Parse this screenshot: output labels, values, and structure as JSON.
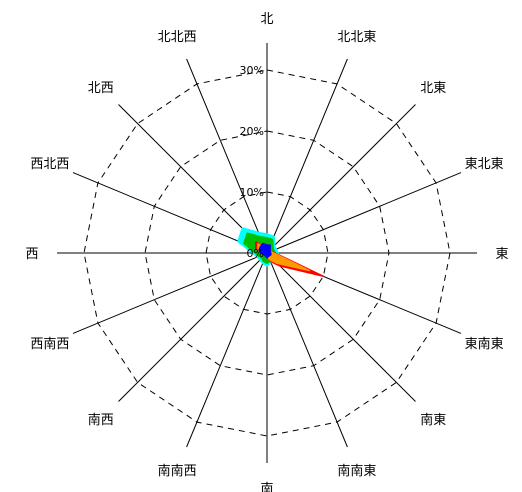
{
  "chart_data": {
    "type": "radar",
    "title": "",
    "directions": [
      "北",
      "北北東",
      "北東",
      "東北東",
      "東",
      "東南東",
      "南東",
      "南南東",
      "南",
      "南南西",
      "南西",
      "西南西",
      "西",
      "西北西",
      "北西",
      "北北西"
    ],
    "radial_ticks": [
      "0%",
      "10%",
      "20%",
      "30%"
    ],
    "rmax": 30,
    "series": [
      {
        "color": "#00ffff",
        "values": [
          3.0,
          2.8,
          1.6,
          1.5,
          1.7,
          1.8,
          1.6,
          1.6,
          2.0,
          1.7,
          1.5,
          1.6,
          2.2,
          5.0,
          5.6,
          3.5
        ]
      },
      {
        "color": "#00c000",
        "values": [
          2.5,
          2.4,
          1.4,
          1.2,
          1.4,
          1.5,
          1.3,
          1.4,
          1.7,
          1.5,
          1.2,
          1.4,
          1.9,
          4.1,
          4.6,
          2.9
        ]
      },
      {
        "color": "#ff0000",
        "values": [
          0.9,
          0.9,
          0.6,
          0.8,
          1.3,
          10.0,
          3.0,
          1.5,
          0.7,
          0.5,
          0.5,
          0.6,
          0.9,
          2.0,
          2.6,
          1.0
        ]
      },
      {
        "color": "#ff9900",
        "values": [
          0.8,
          0.8,
          0.5,
          0.7,
          1.1,
          7.5,
          2.4,
          1.2,
          0.6,
          0.4,
          0.4,
          0.5,
          0.8,
          1.6,
          2.1,
          0.9
        ]
      },
      {
        "color": "#0000ff",
        "values": [
          1.3,
          1.4,
          0.7,
          0.6,
          0.6,
          0.7,
          0.6,
          0.6,
          0.8,
          0.6,
          0.5,
          0.6,
          1.0,
          1.4,
          1.5,
          1.7
        ]
      }
    ]
  }
}
